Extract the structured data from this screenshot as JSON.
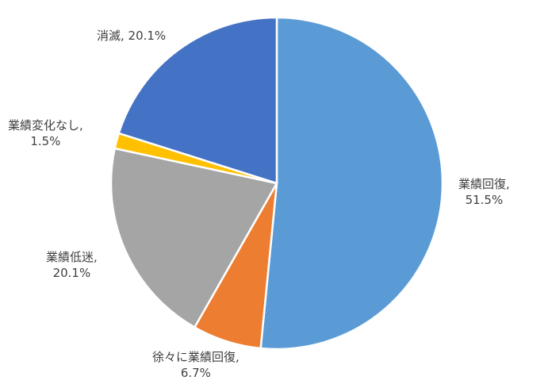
{
  "chart_data": {
    "type": "pie",
    "slices": [
      {
        "name": "業績回復",
        "value": 51.5,
        "label_line1": "業績回復,",
        "label_line2": "51.5%",
        "color": "#5B9BD5"
      },
      {
        "name": "徐々に業績回復",
        "value": 6.7,
        "label_line1": "徐々に業績回復,",
        "label_line2": "6.7%",
        "color": "#ED7D31"
      },
      {
        "name": "業績低迷",
        "value": 20.1,
        "label_line1": "業績低迷,",
        "label_line2": "20.1%",
        "color": "#A5A5A5"
      },
      {
        "name": "業績変化なし",
        "value": 1.5,
        "label_line1": "業績変化なし,",
        "label_line2": "1.5%",
        "color": "#FFC000"
      },
      {
        "name": "消滅",
        "value": 20.1,
        "label_line1": "消滅, 20.1%",
        "label_line2": "",
        "color": "#4472C4"
      }
    ]
  }
}
